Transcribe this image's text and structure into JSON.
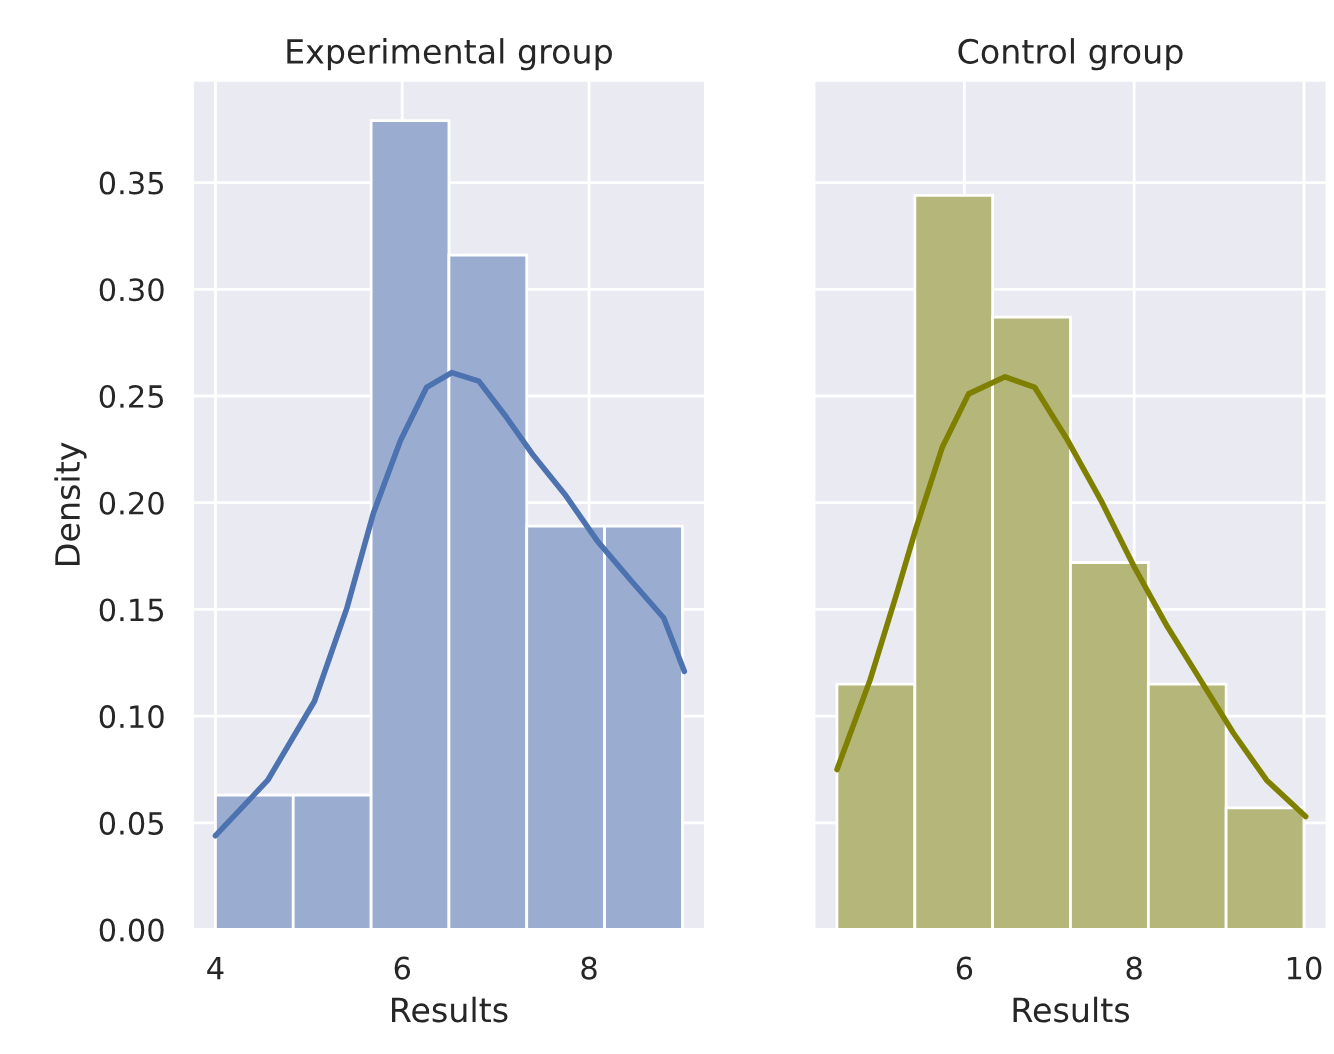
{
  "chart_data": [
    {
      "type": "histogram",
      "title": "Experimental group",
      "xlabel": "Results",
      "ylabel": "Density",
      "bins": [
        4,
        4.833,
        5.667,
        6.5,
        7.333,
        8.167,
        9
      ],
      "values": [
        0.063,
        0.063,
        0.379,
        0.316,
        0.189,
        0.189
      ],
      "color": "#9aadd0",
      "series": [
        {
          "type": "line",
          "color": "#4c72b0",
          "x": [
            4.0,
            4.56,
            5.06,
            5.41,
            5.69,
            5.98,
            6.26,
            6.53,
            6.82,
            7.1,
            7.39,
            7.74,
            8.09,
            8.44,
            8.8,
            9.02
          ],
          "values": [
            0.044,
            0.07,
            0.107,
            0.151,
            0.195,
            0.229,
            0.254,
            0.261,
            0.257,
            0.241,
            0.223,
            0.204,
            0.182,
            0.164,
            0.146,
            0.121
          ]
        }
      ],
      "xlim": [
        3.75,
        9.25
      ],
      "xticks": [
        4,
        6,
        8
      ],
      "ylim": [
        0,
        0.398
      ],
      "yticks": [
        {
          "value": 0,
          "label": "0.00"
        },
        {
          "value": 0.05,
          "label": "0.05"
        },
        {
          "value": 0.1,
          "label": "0.10"
        },
        {
          "value": 0.15,
          "label": "0.15"
        },
        {
          "value": 0.2,
          "label": "0.20"
        },
        {
          "value": 0.25,
          "label": "0.25"
        },
        {
          "value": 0.3,
          "label": "0.30"
        },
        {
          "value": 0.35,
          "label": "0.35"
        }
      ],
      "grid": true
    },
    {
      "type": "histogram",
      "title": "Control group",
      "xlabel": "Results",
      "bins": [
        4.5,
        5.417,
        6.333,
        7.25,
        8.167,
        9.083,
        10
      ],
      "values": [
        0.115,
        0.344,
        0.287,
        0.172,
        0.115,
        0.057
      ],
      "color": "#b5b67a",
      "series": [
        {
          "type": "line",
          "color": "#808000",
          "x": [
            4.5,
            4.89,
            5.2,
            5.43,
            5.74,
            6.05,
            6.48,
            6.83,
            7.22,
            7.61,
            8.0,
            8.39,
            8.78,
            9.17,
            9.56,
            10.02
          ],
          "values": [
            0.075,
            0.117,
            0.157,
            0.188,
            0.226,
            0.251,
            0.259,
            0.254,
            0.229,
            0.201,
            0.17,
            0.142,
            0.117,
            0.092,
            0.07,
            0.053
          ]
        }
      ],
      "xlim": [
        4.225,
        10.275
      ],
      "xticks": [
        6,
        8,
        10
      ],
      "ylim": [
        0,
        0.398
      ],
      "yticks": [
        {
          "value": 0,
          "label": null
        },
        {
          "value": 0.05,
          "label": null
        },
        {
          "value": 0.1,
          "label": null
        },
        {
          "value": 0.15,
          "label": null
        },
        {
          "value": 0.2,
          "label": null
        },
        {
          "value": 0.25,
          "label": null
        },
        {
          "value": 0.3,
          "label": null
        },
        {
          "value": 0.35,
          "label": null
        }
      ],
      "tick_labels": "x",
      "grid": true
    }
  ]
}
